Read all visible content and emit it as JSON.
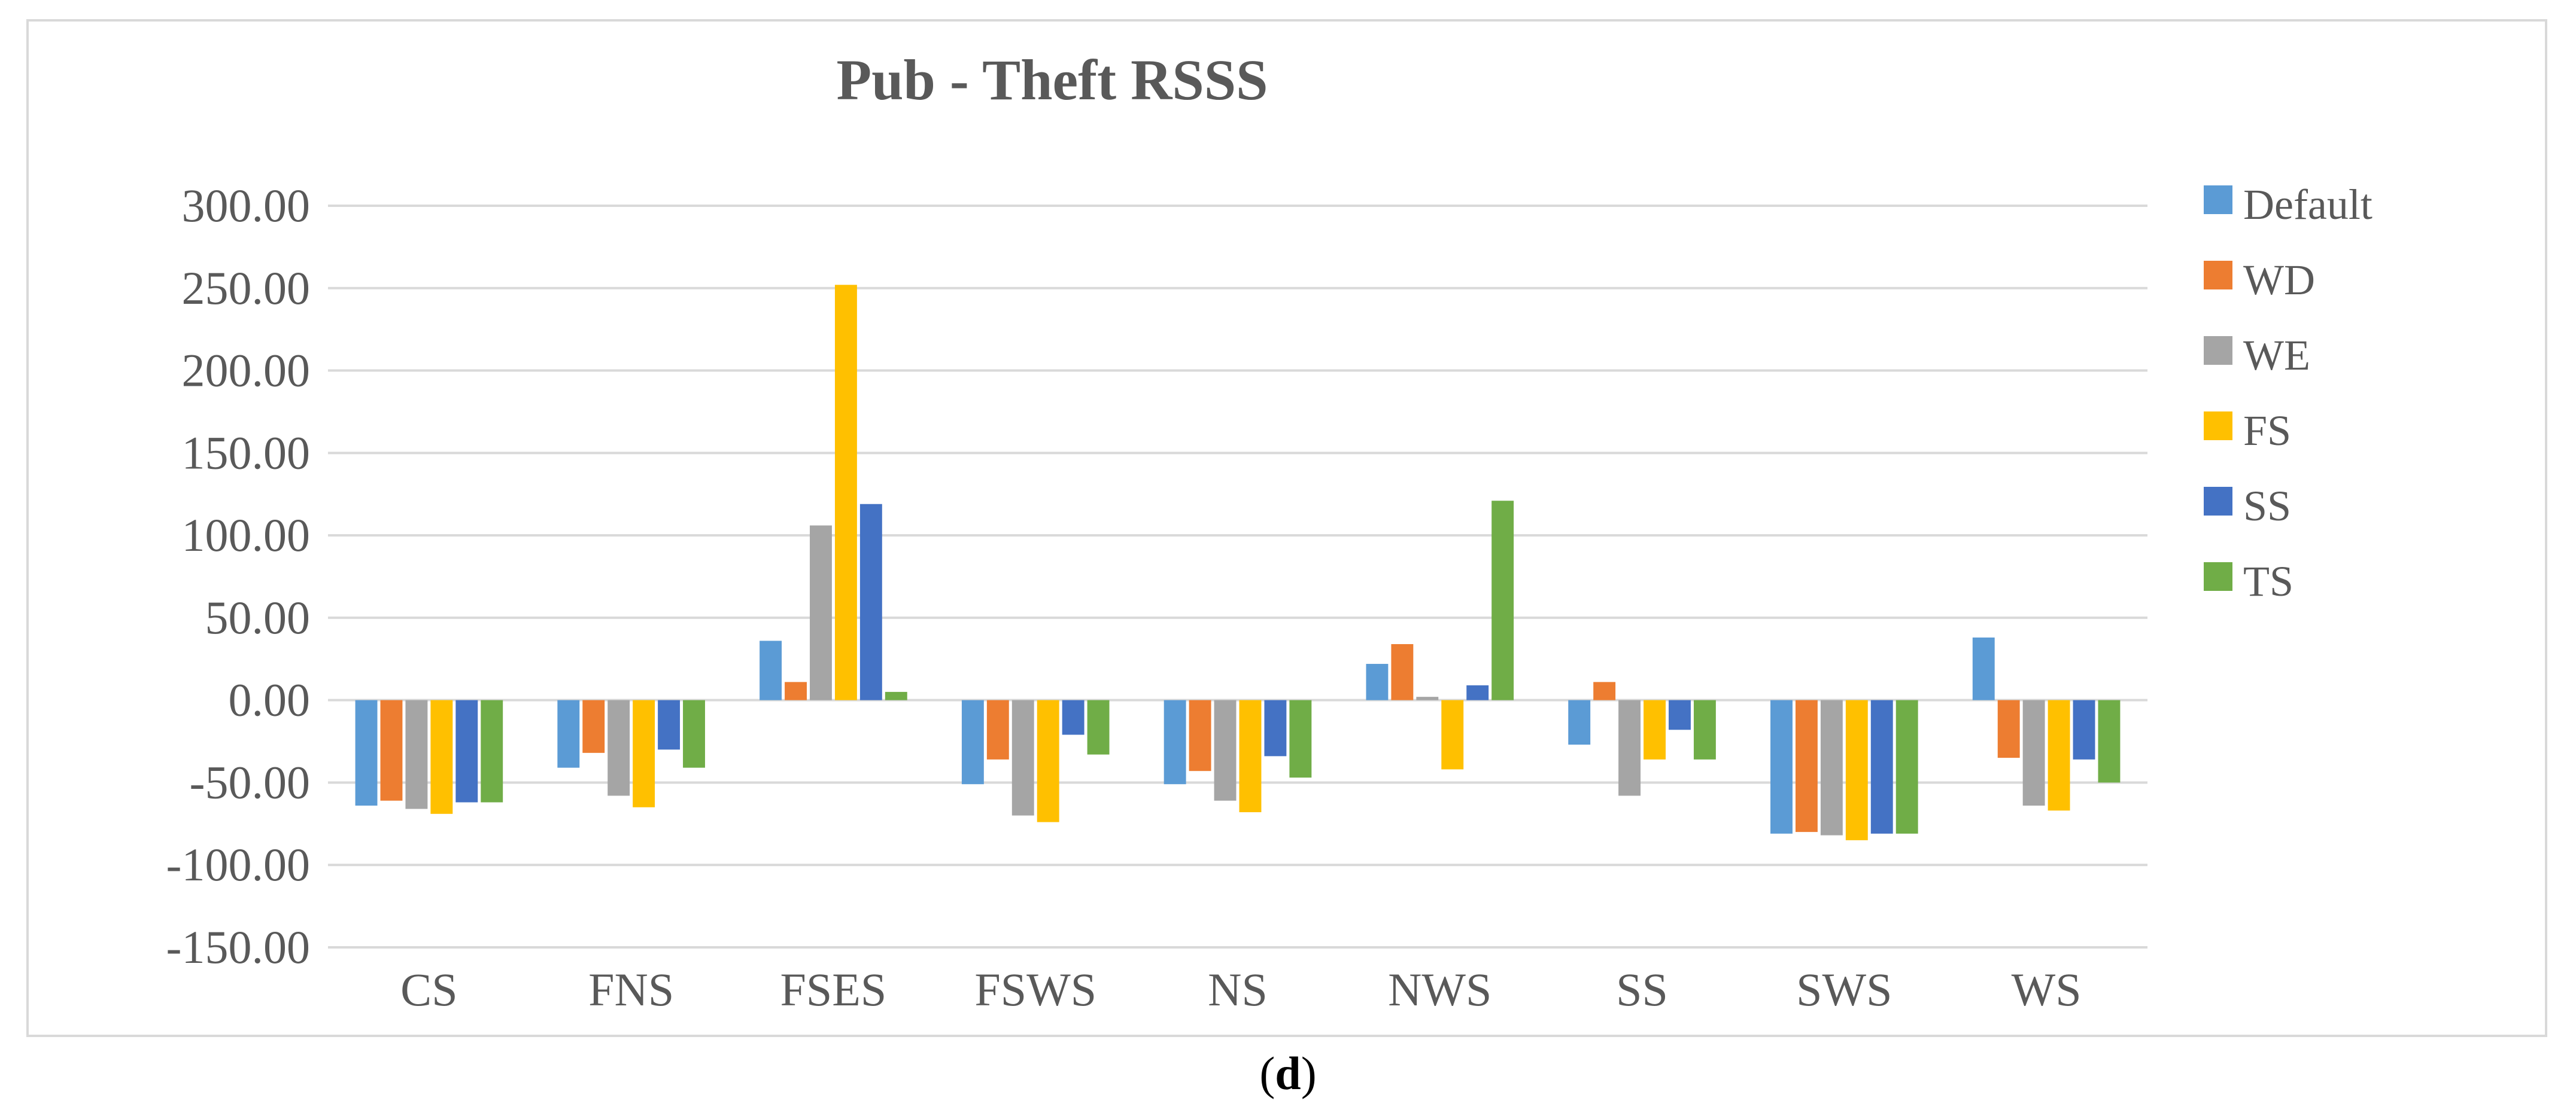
{
  "figure_label": {
    "open": "(",
    "letter": "d",
    "close": ")"
  },
  "chart_data": {
    "type": "bar",
    "title": "Pub - Theft RSSS",
    "xlabel": "",
    "ylabel": "",
    "ylim": [
      -150,
      300
    ],
    "yticks": [
      300,
      250,
      200,
      150,
      100,
      50,
      0,
      -50,
      -100,
      -150
    ],
    "ytick_labels": [
      "300.00",
      "250.00",
      "200.00",
      "150.00",
      "100.00",
      "50.00",
      "0.00",
      "-50.00",
      "-100.00",
      "-150.00"
    ],
    "grid": true,
    "legend_position": "right",
    "categories": [
      "CS",
      "FNS",
      "FSES",
      "FSWS",
      "NS",
      "NWS",
      "SS",
      "SWS",
      "WS"
    ],
    "series": [
      {
        "name": "Default",
        "color": "#5b9bd5",
        "values": [
          -64,
          -41,
          36,
          -51,
          -51,
          22,
          -27,
          -81,
          38
        ]
      },
      {
        "name": "WD",
        "color": "#ed7d31",
        "values": [
          -61,
          -32,
          11,
          -36,
          -43,
          34,
          11,
          -80,
          -35
        ]
      },
      {
        "name": "WE",
        "color": "#a5a5a5",
        "values": [
          -66,
          -58,
          106,
          -70,
          -61,
          2,
          -58,
          -82,
          -64
        ]
      },
      {
        "name": "FS",
        "color": "#ffc000",
        "values": [
          -69,
          -65,
          252,
          -74,
          -68,
          -42,
          -36,
          -85,
          -67
        ]
      },
      {
        "name": "SS",
        "color": "#4472c4",
        "values": [
          -62,
          -30,
          119,
          -21,
          -34,
          9,
          -18,
          -81,
          -36
        ]
      },
      {
        "name": "TS",
        "color": "#70ad47",
        "values": [
          -62,
          -41,
          5,
          -33,
          -47,
          121,
          -36,
          -81,
          -50
        ]
      }
    ]
  }
}
